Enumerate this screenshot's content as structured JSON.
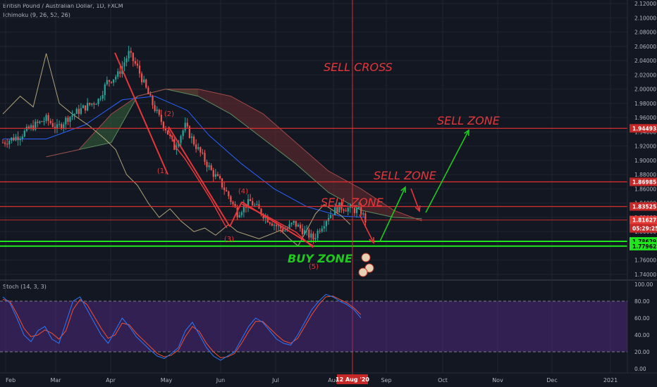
{
  "symbol_title": "British Pound / Australian Dollar, 1D, FXCM",
  "ichimoku_label": "Ichimoku (9, 26, 52, 26)",
  "stoch_label": "Stoch (14, 3, 3)",
  "colors": {
    "background": "#131722",
    "grid": "#1f2431",
    "axis_text": "#b2b5be",
    "candle_up": "#26a69a",
    "candle_down": "#ef5350",
    "kumo_bull": "#3c6b3f",
    "kumo_bear": "#6b2e30",
    "kijun": "#2962ff",
    "chikou": "#d8c68c",
    "level_red": "#d62f2f",
    "level_green": "#21e51f",
    "annotation_red": "#e6363a",
    "annotation_green": "#1ec81e",
    "stoch_k": "#2979ff",
    "stoch_d": "#f05033",
    "stoch_band": "#5b2d8e",
    "crosshair": "#d0302f"
  },
  "chart_data": {
    "type": "candlestick",
    "x_ticks": [
      "Feb",
      "Mar",
      "Apr",
      "May",
      "Jun",
      "Jul",
      "Aug",
      "Sep",
      "Oct",
      "Nov",
      "Dec",
      "2021"
    ],
    "price_axis": {
      "ylim": [
        1.735,
        2.125
      ],
      "ticks": [
        "2.12000",
        "2.10000",
        "2.08000",
        "2.06000",
        "2.04000",
        "2.02000",
        "2.00000",
        "1.98000",
        "1.96000",
        "1.94000",
        "1.92000",
        "1.90000",
        "1.88000",
        "1.86000",
        "1.84000",
        "1.82000",
        "1.80000",
        "1.78000",
        "1.76000",
        "1.74000"
      ]
    },
    "price_badges": [
      {
        "label": "1.94493",
        "value": 1.94493,
        "style": "level"
      },
      {
        "label": "1.86985",
        "value": 1.86985,
        "style": "level"
      },
      {
        "label": "1.83525",
        "value": 1.83525,
        "style": "level"
      },
      {
        "label": "1.81627",
        "value": 1.81627,
        "style": "last"
      },
      {
        "label": "05:29:25",
        "value": 1.8045,
        "style": "timer"
      },
      {
        "label": "1.78629",
        "value": 1.78629,
        "style": "green"
      },
      {
        "label": "1.77962",
        "value": 1.77962,
        "style": "green"
      }
    ],
    "levels": [
      {
        "value": 1.94493,
        "color": "red"
      },
      {
        "value": 1.86985,
        "color": "red"
      },
      {
        "value": 1.83525,
        "color": "red"
      },
      {
        "value": 1.81627,
        "color": "red-thin"
      },
      {
        "value": 1.78629,
        "color": "green"
      },
      {
        "value": 1.77962,
        "color": "green"
      }
    ],
    "crosshair": {
      "date_label": "12 Aug '20"
    },
    "annotations": {
      "sell_cross": "SELL CROSS",
      "sell_zone_top": "SELL ZONE",
      "sell_zone_mid": "SELL ZONE",
      "sell_zone_low": "SELL ZONE",
      "buy_zone": "BUY ZONE",
      "waves": [
        "(1)",
        "(2)",
        "(3)",
        "(4)",
        "(5)"
      ]
    },
    "stoch_axis": {
      "ylim": [
        -5,
        105
      ],
      "ticks": [
        "100.00",
        "80.00",
        "60.00",
        "40.00",
        "20.00",
        "0.00"
      ],
      "band": [
        20,
        80
      ]
    },
    "series": [
      {
        "kind": "price_path",
        "points": [
          [
            0,
            1.925
          ],
          [
            8,
            1.935
          ],
          [
            14,
            1.948
          ],
          [
            20,
            1.958
          ],
          [
            25,
            1.945
          ],
          [
            30,
            1.96
          ],
          [
            38,
            1.975
          ],
          [
            44,
            1.985
          ],
          [
            48,
            2.01
          ],
          [
            53,
            2.02
          ],
          [
            58,
            2.05
          ],
          [
            62,
            2.03
          ],
          [
            68,
            1.985
          ],
          [
            72,
            1.96
          ],
          [
            75,
            1.945
          ],
          [
            79,
            1.918
          ],
          [
            84,
            1.948
          ],
          [
            88,
            1.925
          ],
          [
            92,
            1.905
          ],
          [
            96,
            1.885
          ],
          [
            100,
            1.87
          ],
          [
            104,
            1.85
          ],
          [
            108,
            1.826
          ],
          [
            111,
            1.835
          ],
          [
            114,
            1.842
          ],
          [
            118,
            1.83
          ],
          [
            122,
            1.818
          ],
          [
            126,
            1.808
          ],
          [
            130,
            1.802
          ],
          [
            134,
            1.812
          ],
          [
            138,
            1.802
          ],
          [
            143,
            1.79
          ],
          [
            146,
            1.805
          ],
          [
            150,
            1.822
          ],
          [
            155,
            1.835
          ],
          [
            160,
            1.832
          ],
          [
            165,
            1.828
          ],
          [
            167,
            1.816
          ]
        ]
      },
      {
        "kind": "kijun",
        "points": [
          [
            0,
            1.93
          ],
          [
            20,
            1.93
          ],
          [
            38,
            1.95
          ],
          [
            55,
            1.985
          ],
          [
            70,
            1.99
          ],
          [
            85,
            1.97
          ],
          [
            95,
            1.935
          ],
          [
            110,
            1.895
          ],
          [
            125,
            1.86
          ],
          [
            140,
            1.835
          ],
          [
            155,
            1.822
          ],
          [
            167,
            1.82
          ]
        ]
      },
      {
        "kind": "chikou",
        "points": [
          [
            0,
            1.965
          ],
          [
            8,
            1.99
          ],
          [
            14,
            1.975
          ],
          [
            20,
            2.05
          ],
          [
            26,
            1.98
          ],
          [
            32,
            1.965
          ],
          [
            40,
            1.948
          ],
          [
            47,
            1.93
          ],
          [
            52,
            1.915
          ],
          [
            57,
            1.88
          ],
          [
            62,
            1.865
          ],
          [
            67,
            1.84
          ],
          [
            72,
            1.82
          ],
          [
            77,
            1.832
          ],
          [
            82,
            1.815
          ],
          [
            88,
            1.8
          ],
          [
            93,
            1.805
          ],
          [
            98,
            1.795
          ],
          [
            104,
            1.81
          ],
          [
            108,
            1.8
          ],
          [
            113,
            1.795
          ],
          [
            118,
            1.79
          ],
          [
            124,
            1.797
          ],
          [
            128,
            1.802
          ],
          [
            132,
            1.79
          ],
          [
            136,
            1.78
          ],
          [
            140,
            1.802
          ],
          [
            144,
            1.825
          ],
          [
            148,
            1.838
          ],
          [
            152,
            1.83
          ],
          [
            156,
            1.822
          ],
          [
            160,
            1.81
          ]
        ]
      },
      {
        "kind": "senkou_a",
        "points": [
          [
            20,
            1.905
          ],
          [
            35,
            1.915
          ],
          [
            50,
            1.925
          ],
          [
            62,
            1.99
          ],
          [
            75,
            2.0
          ],
          [
            90,
            1.99
          ],
          [
            105,
            1.965
          ],
          [
            120,
            1.93
          ],
          [
            135,
            1.895
          ],
          [
            150,
            1.855
          ],
          [
            165,
            1.83
          ],
          [
            180,
            1.82
          ],
          [
            193,
            1.818
          ]
        ]
      },
      {
        "kind": "senkou_b",
        "points": [
          [
            20,
            1.905
          ],
          [
            35,
            1.915
          ],
          [
            50,
            1.965
          ],
          [
            62,
            1.99
          ],
          [
            75,
            2.0
          ],
          [
            90,
            2.0
          ],
          [
            105,
            1.99
          ],
          [
            120,
            1.965
          ],
          [
            135,
            1.925
          ],
          [
            150,
            1.885
          ],
          [
            165,
            1.86
          ],
          [
            180,
            1.83
          ],
          [
            193,
            1.815
          ]
        ]
      },
      {
        "kind": "stoch",
        "k": [
          85,
          78,
          60,
          40,
          32,
          45,
          50,
          35,
          30,
          55,
          80,
          85,
          70,
          55,
          40,
          30,
          45,
          60,
          50,
          38,
          30,
          22,
          15,
          12,
          18,
          25,
          45,
          55,
          40,
          25,
          15,
          10,
          15,
          20,
          35,
          50,
          60,
          55,
          45,
          35,
          30,
          28,
          40,
          55,
          70,
          80,
          88,
          85,
          80,
          76,
          70,
          60
        ]
      },
      {
        "kind": "stoch_d",
        "d": [
          82,
          80,
          65,
          48,
          38,
          40,
          46,
          42,
          35,
          45,
          70,
          82,
          76,
          62,
          48,
          36,
          40,
          54,
          52,
          42,
          34,
          26,
          18,
          14,
          16,
          22,
          38,
          50,
          44,
          30,
          20,
          13,
          14,
          18,
          30,
          44,
          56,
          56,
          48,
          40,
          33,
          30,
          36,
          50,
          64,
          76,
          85,
          86,
          82,
          78,
          72,
          64
        ]
      }
    ]
  }
}
